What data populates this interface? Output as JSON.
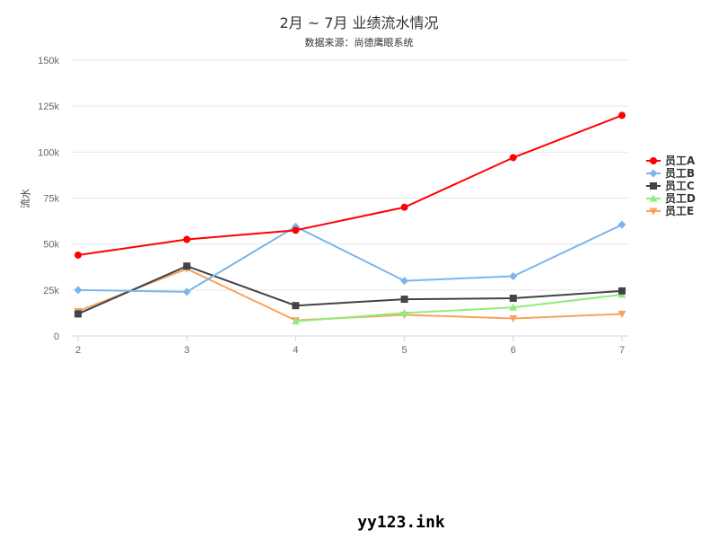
{
  "chart_data": {
    "type": "line",
    "title": "2月 ~ 7月 业绩流水情况",
    "subtitle": "数据来源：尚德鹰眼系统",
    "ylabel": "流水",
    "xlabel": "",
    "x": [
      2,
      3,
      4,
      5,
      6,
      7
    ],
    "ylim": [
      0,
      150000
    ],
    "yticks": [
      "0",
      "25k",
      "50k",
      "75k",
      "100k",
      "125k",
      "150k"
    ],
    "grid": true,
    "legend": "right",
    "series": [
      {
        "name": "员工A",
        "color": "#ff0000",
        "marker": "circle",
        "values": [
          44000,
          52500,
          57500,
          70000,
          97000,
          120000
        ]
      },
      {
        "name": "员工B",
        "color": "#7cb5ec",
        "marker": "diamond",
        "values": [
          25000,
          24000,
          59500,
          30000,
          32500,
          60500
        ]
      },
      {
        "name": "员工C",
        "color": "#434348",
        "marker": "square",
        "values": [
          12000,
          38000,
          16500,
          20000,
          20500,
          24500
        ]
      },
      {
        "name": "员工D",
        "color": "#90ed7d",
        "marker": "triangle",
        "values": [
          null,
          null,
          8000,
          12500,
          15500,
          22500
        ]
      },
      {
        "name": "员工E",
        "color": "#f7a35c",
        "marker": "triangle-down",
        "values": [
          13500,
          36500,
          8500,
          11500,
          9500,
          12000
        ]
      }
    ]
  },
  "watermark": "yy123.ink"
}
